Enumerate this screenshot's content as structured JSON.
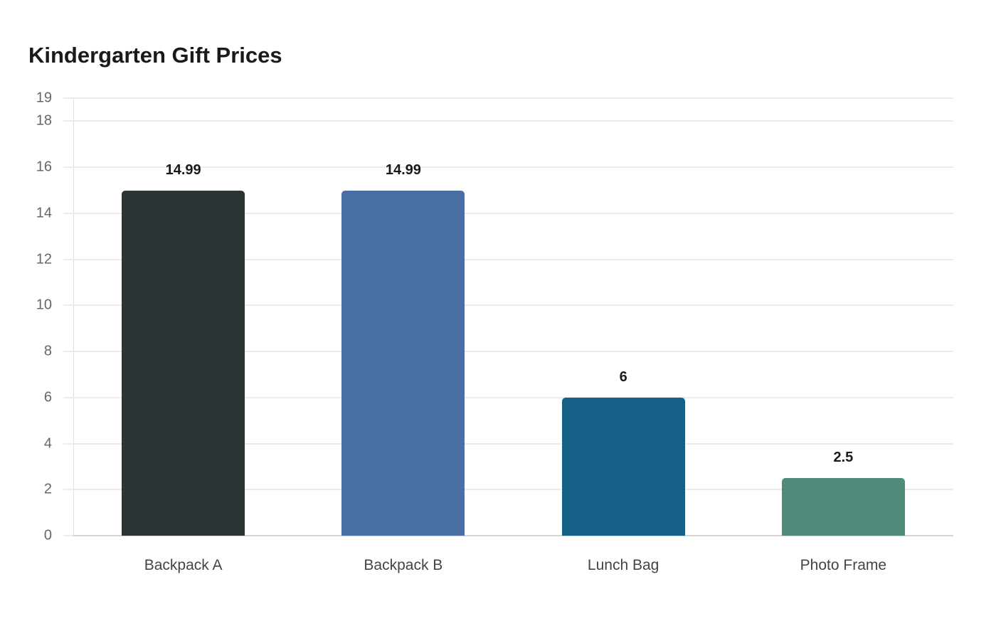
{
  "chart_data": {
    "type": "bar",
    "title": "Kindergarten Gift Prices",
    "xlabel": "",
    "ylabel": "",
    "categories": [
      "Backpack A",
      "Backpack B",
      "Lunch Bag",
      "Photo Frame"
    ],
    "values": [
      14.99,
      14.99,
      6,
      2.5
    ],
    "value_labels": [
      "14.99",
      "14.99",
      "6",
      "2.5"
    ],
    "colors": [
      "#2d3436",
      "#4a6fa5",
      "#166088",
      "#4f8a7a"
    ],
    "ylim": [
      0,
      19
    ],
    "yticks": [
      0,
      2,
      4,
      6,
      8,
      10,
      12,
      14,
      16,
      18,
      19
    ],
    "grid": true,
    "legend": null
  }
}
